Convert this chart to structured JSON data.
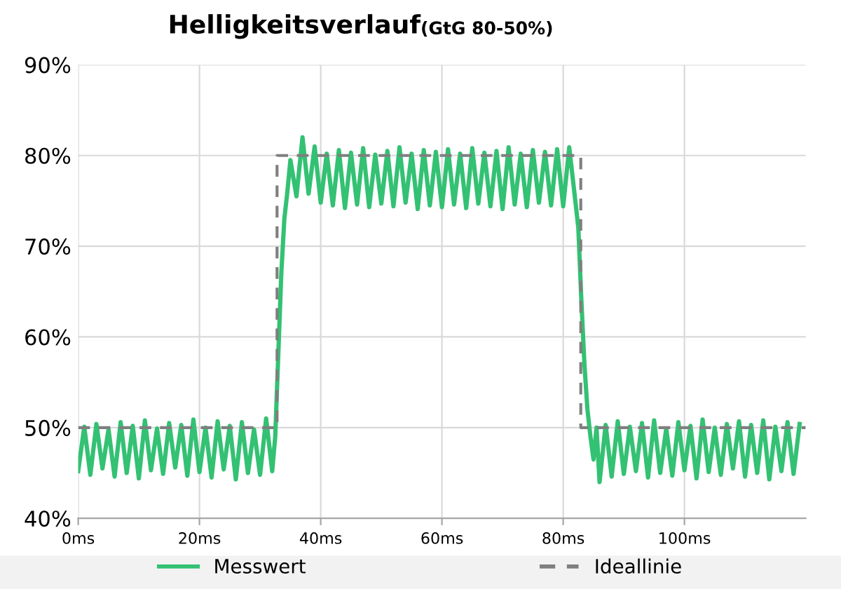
{
  "chart_data": {
    "type": "line",
    "title": "Helligkeitsverlauf",
    "subtitle": "(GtG 80-50%)",
    "xlim": [
      0,
      120
    ],
    "ylim": [
      40,
      90
    ],
    "xticks": [
      {
        "value": 0,
        "label": "0ms"
      },
      {
        "value": 20,
        "label": "20ms"
      },
      {
        "value": 40,
        "label": "40ms"
      },
      {
        "value": 60,
        "label": "60ms"
      },
      {
        "value": 80,
        "label": "80ms"
      },
      {
        "value": 100,
        "label": "100ms"
      }
    ],
    "yticks": [
      {
        "value": 40,
        "label": "40%"
      },
      {
        "value": 50,
        "label": "50%"
      },
      {
        "value": 60,
        "label": "60%"
      },
      {
        "value": 70,
        "label": "70%"
      },
      {
        "value": 80,
        "label": "80%"
      },
      {
        "value": 90,
        "label": "90%"
      }
    ],
    "grid": true,
    "legend": "bottom",
    "series": [
      {
        "name": "Messwert",
        "color": "#33c173",
        "line_style": "solid",
        "x": [
          0,
          1,
          2,
          3,
          4,
          5,
          6,
          7,
          8,
          9,
          10,
          11,
          12,
          13,
          14,
          15,
          16,
          17,
          18,
          19,
          20,
          21,
          22,
          23,
          24,
          25,
          26,
          27,
          28,
          29,
          30,
          31,
          32,
          32.5,
          33,
          33.5,
          34,
          34.5,
          35,
          36,
          37,
          38,
          39,
          40,
          41,
          42,
          43,
          44,
          45,
          46,
          47,
          48,
          49,
          50,
          51,
          52,
          53,
          54,
          55,
          56,
          57,
          58,
          59,
          60,
          61,
          62,
          63,
          64,
          65,
          66,
          67,
          68,
          69,
          70,
          71,
          72,
          73,
          74,
          75,
          76,
          77,
          78,
          79,
          80,
          81,
          82,
          82.5,
          83,
          83.5,
          84,
          84.5,
          85,
          85.5,
          86,
          87,
          88,
          89,
          90,
          91,
          92,
          93,
          94,
          95,
          96,
          97,
          98,
          99,
          100,
          101,
          102,
          103,
          104,
          105,
          106,
          107,
          108,
          109,
          110,
          111,
          112,
          113,
          114,
          115,
          116,
          117,
          118,
          119
        ],
        "values": [
          45.2,
          50.1,
          44.8,
          50.4,
          45.5,
          49.8,
          44.6,
          50.6,
          45.0,
          50.2,
          44.4,
          50.8,
          45.3,
          49.9,
          44.9,
          50.5,
          45.6,
          50.3,
          44.7,
          50.9,
          45.1,
          50.0,
          44.5,
          50.7,
          45.4,
          50.2,
          44.3,
          50.6,
          45.0,
          49.8,
          44.8,
          51.0,
          45.2,
          49,
          58,
          67,
          73,
          76,
          79.5,
          75.5,
          82.0,
          75.8,
          81.0,
          74.8,
          80.2,
          74.5,
          80.6,
          74.2,
          80.3,
          74.6,
          80.8,
          74.3,
          80.1,
          74.7,
          80.5,
          74.4,
          80.9,
          74.8,
          80.2,
          74.1,
          80.6,
          74.5,
          80.4,
          74.3,
          80.7,
          74.6,
          80.2,
          74.2,
          80.8,
          74.7,
          80.3,
          74.4,
          80.5,
          74.1,
          80.9,
          74.6,
          80.2,
          74.3,
          80.6,
          74.8,
          80.4,
          74.5,
          80.7,
          74.4,
          80.9,
          75.0,
          72,
          64,
          57,
          52,
          49,
          46.5,
          50,
          44.0,
          50.3,
          44.6,
          50.7,
          44.9,
          50.1,
          45.2,
          50.5,
          44.5,
          50.8,
          45.0,
          49.9,
          44.7,
          50.6,
          45.3,
          50.2,
          44.4,
          50.9,
          45.1,
          50.0,
          44.8,
          50.4,
          45.5,
          50.7,
          44.6,
          50.3,
          45.0,
          50.8,
          44.3,
          50.1,
          45.2,
          50.6,
          44.9,
          50.4
        ]
      },
      {
        "name": "Ideallinie",
        "color": "#7f7f7f",
        "line_style": "dashed",
        "x": [
          0,
          32.8,
          32.8,
          82.9,
          82.9,
          120
        ],
        "values": [
          50,
          50,
          80,
          80,
          50,
          50
        ]
      }
    ]
  }
}
